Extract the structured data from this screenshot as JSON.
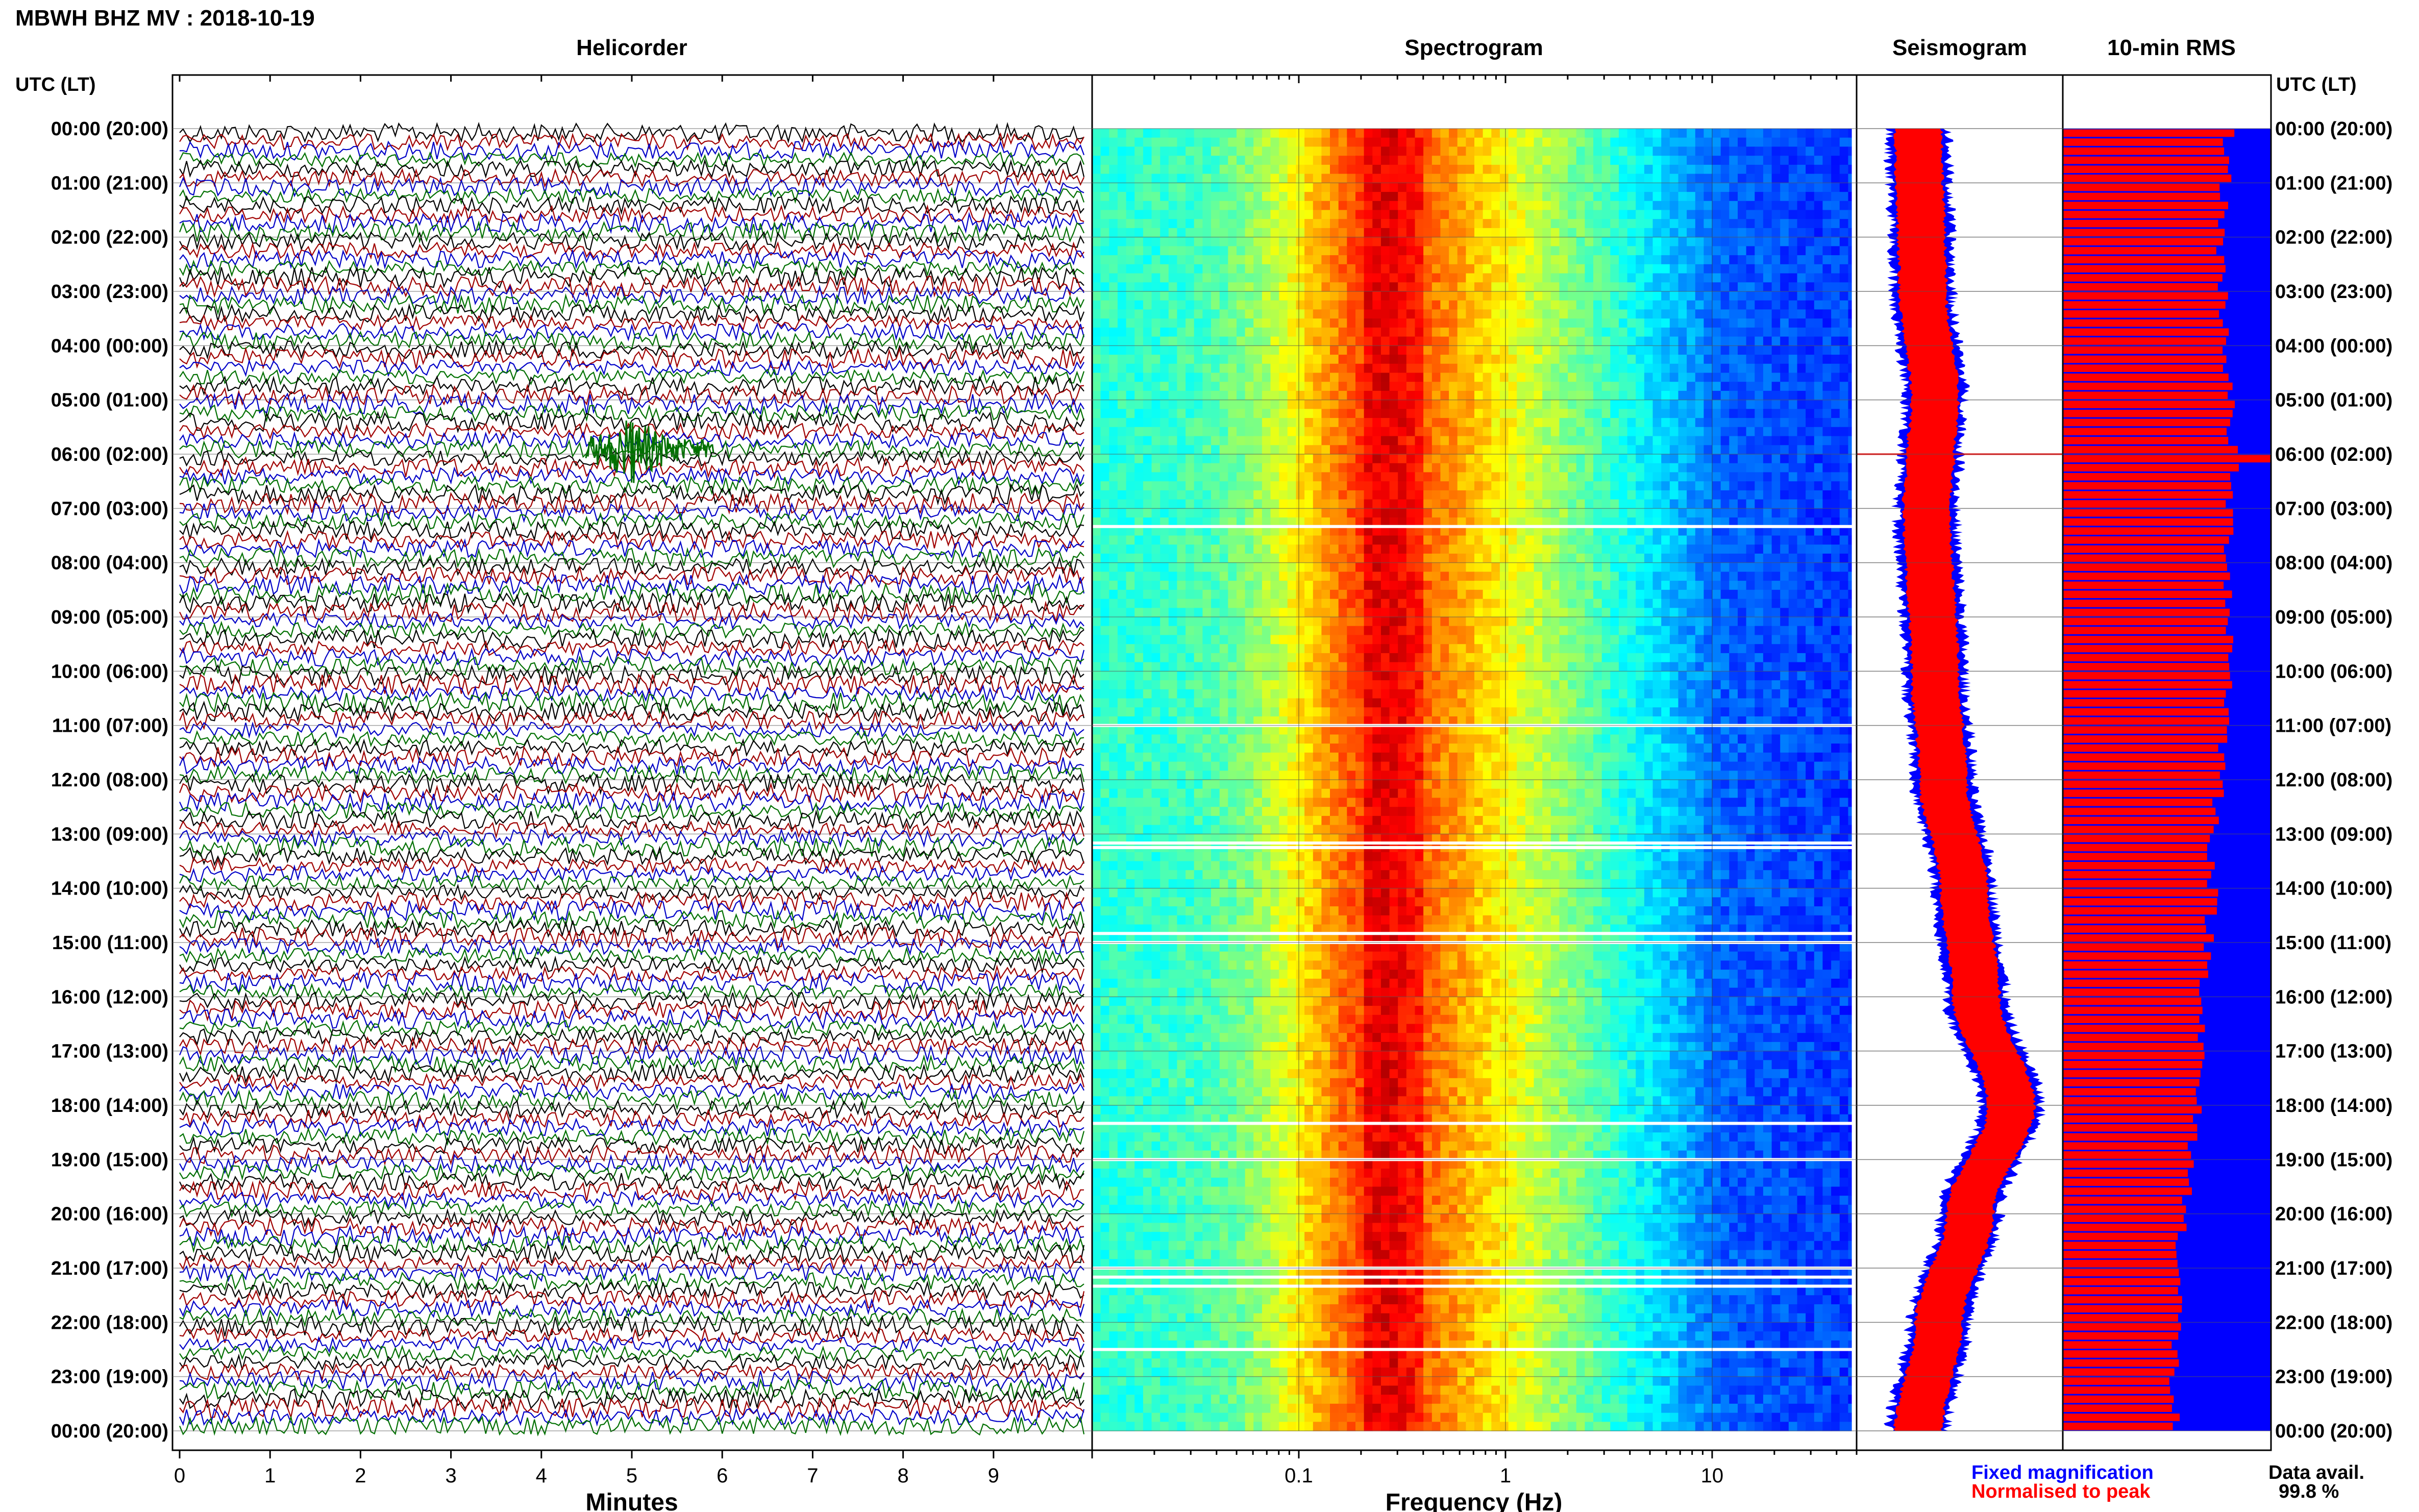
{
  "header": {
    "title": "MBWH BHZ MV : 2018-10-19",
    "axis_time_label": "UTC (LT)"
  },
  "panels": {
    "helicorder": "Helicorder",
    "spectrogram": "Spectrogram",
    "seismogram": "Seismogram",
    "rms": "10-min RMS"
  },
  "time_labels": [
    "00:00 (20:00)",
    "01:00 (21:00)",
    "02:00 (22:00)",
    "03:00 (23:00)",
    "04:00 (00:00)",
    "05:00 (01:00)",
    "06:00 (02:00)",
    "07:00 (03:00)",
    "08:00 (04:00)",
    "09:00 (05:00)",
    "10:00 (06:00)",
    "11:00 (07:00)",
    "12:00 (08:00)",
    "13:00 (09:00)",
    "14:00 (10:00)",
    "15:00 (11:00)",
    "16:00 (12:00)",
    "17:00 (13:00)",
    "18:00 (14:00)",
    "19:00 (15:00)",
    "20:00 (16:00)",
    "21:00 (17:00)",
    "22:00 (18:00)",
    "23:00 (19:00)",
    "00:00 (20:00)"
  ],
  "footer": {
    "legend_fixed": "Fixed magnification",
    "legend_normalised": "Normalised to peak",
    "data_avail_label": "Data avail.",
    "data_avail_value": "99.8 %"
  },
  "colors": {
    "helicorder_traces": [
      "#000000",
      "#a00000",
      "#0000c8",
      "#007000"
    ],
    "fixed_magnification": "#0000ff",
    "normalised_to_peak": "#ff0000",
    "spectrogram_colormap": "jet"
  },
  "chart_data": [
    {
      "type": "line",
      "name": "helicorder",
      "xlabel": "Minutes",
      "xticks": [
        0,
        1,
        2,
        3,
        4,
        5,
        6,
        7,
        8,
        9
      ],
      "xlim": [
        0,
        10
      ],
      "rows": 144,
      "row_minutes": 10,
      "events": [
        {
          "start_time": "05:50",
          "minute": 5.0,
          "color": "#007000"
        }
      ]
    },
    {
      "type": "heatmap",
      "name": "spectrogram",
      "xlabel": "Frequency (Hz)",
      "xscale": "log",
      "xticks": [
        0.1,
        1,
        10
      ],
      "xlim": [
        0.01,
        50
      ],
      "peak_band_hz": [
        0.2,
        0.4
      ],
      "data_gaps": [
        "07:20",
        "11:00",
        "13:10",
        "13:15",
        "14:50",
        "15:00",
        "18:20",
        "19:00",
        "21:00",
        "21:10",
        "21:20",
        "22:30"
      ]
    },
    {
      "type": "line",
      "name": "seismogram",
      "series": [
        {
          "name": "Fixed magnification",
          "color": "#0000ff"
        },
        {
          "name": "Normalised to peak",
          "color": "#ff0000"
        }
      ],
      "centerline_minutes": [
        0,
        180,
        300,
        360,
        420,
        600,
        720,
        840,
        960,
        1080,
        1200,
        1320,
        1440
      ],
      "centerline_offset": [
        0.3,
        0.32,
        0.38,
        0.36,
        0.34,
        0.38,
        0.42,
        0.52,
        0.58,
        0.75,
        0.55,
        0.4,
        0.3
      ]
    },
    {
      "type": "bar",
      "name": "10-min RMS",
      "series": [
        {
          "name": "Normalised to peak",
          "color": "#ff0000"
        }
      ],
      "bins": 144,
      "rms_fraction_hourly": [
        0.8,
        0.78,
        0.76,
        0.77,
        0.79,
        0.8,
        0.82,
        0.8,
        0.8,
        0.8,
        0.81,
        0.78,
        0.76,
        0.72,
        0.72,
        0.7,
        0.68,
        0.66,
        0.64,
        0.62,
        0.58,
        0.56,
        0.55,
        0.53,
        0.54
      ],
      "peak_bin_time": "06:00"
    }
  ]
}
